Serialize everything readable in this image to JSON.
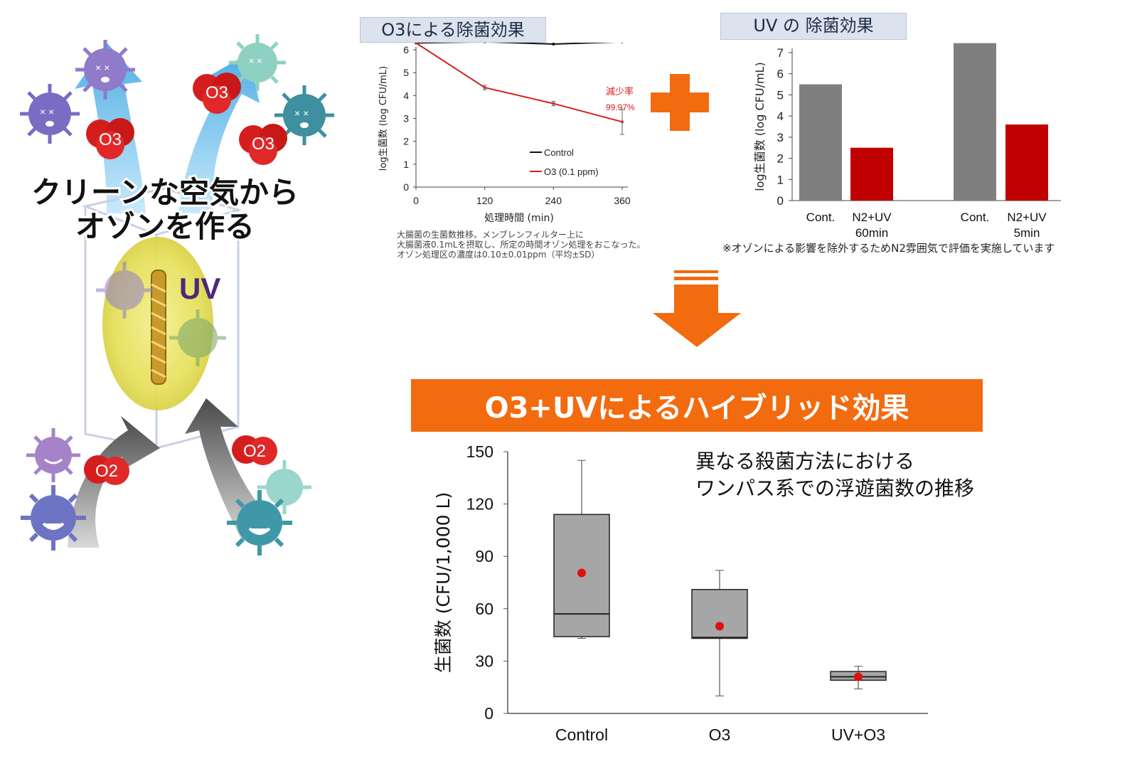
{
  "illustration": {
    "headline_line1": "クリーンな空気から",
    "headline_line2": "オゾンを作る",
    "uv_label": "UV",
    "molecule_o3": "O3",
    "molecule_o2": "O2",
    "colors": {
      "virus_purple": "#8b7cc8",
      "virus_teal": "#5aa8b0",
      "molecule_red": "#d62020",
      "arrow_blue": "#4fb3e6",
      "lamp_glow": "#e6e04a"
    }
  },
  "o3_panel": {
    "title": "O3による除菌効果",
    "caption_lines": [
      "大腸菌の生菌数推移。メンブレンフィルター上に",
      "大腸菌液0.1mLを摂取し、所定の時間オゾン処理をおこなった。",
      "オゾン処理区の濃度は0.10±0.01ppm（平均±SD）"
    ]
  },
  "uv_panel": {
    "title": "UV の 除菌効果",
    "note": "※オゾンによる影響を除外するためN2雰囲気で評価を実施しています"
  },
  "hybrid_banner": {
    "text": "O3+UVによるハイブリッド効果",
    "color": "#f26b0f"
  },
  "boxplot_note": {
    "line1": "異なる殺菌方法における",
    "line2": "ワンパス系での浮遊菌数の推移"
  },
  "chart_data": [
    {
      "type": "line",
      "xlabel": "処理時間 (min)",
      "ylabel": "log生菌数 (log CFU/mL)",
      "x": [
        0,
        120,
        240,
        360
      ],
      "xticks": [
        "0",
        "120",
        "240",
        "360"
      ],
      "ylim": [
        0,
        6
      ],
      "yticks": [
        "0",
        "1",
        "2",
        "3",
        "4",
        "5",
        "6"
      ],
      "series": [
        {
          "name": "Control",
          "color": "#111111",
          "values": [
            6.3,
            6.35,
            6.25,
            6.35
          ]
        },
        {
          "name": "O3 (0.1 ppm)",
          "color": "#d62020",
          "values": [
            6.3,
            4.35,
            3.65,
            2.85
          ],
          "error": [
            0,
            0.1,
            0.1,
            0.55
          ]
        }
      ],
      "annotation": {
        "label": "減少率",
        "value": "99.97%"
      },
      "legend": "bottom-right",
      "grid": false
    },
    {
      "type": "bar",
      "ylabel": "log生菌数 (log CFU/mL)",
      "ylim": [
        0,
        7
      ],
      "yticks": [
        "0",
        "1",
        "2",
        "3",
        "4",
        "5",
        "6",
        "7"
      ],
      "categories": [
        {
          "label1": "Cont.",
          "label2": "",
          "value": 5.5,
          "color": "#7f7f7f"
        },
        {
          "label1": "N2+UV",
          "label2": "60min",
          "value": 2.5,
          "color": "#c00000"
        },
        {
          "label1": "Cont.",
          "label2": "",
          "value": 7.45,
          "color": "#7f7f7f"
        },
        {
          "label1": "N2+UV",
          "label2": "5min",
          "value": 3.6,
          "color": "#c00000"
        }
      ],
      "grid": false
    },
    {
      "type": "box",
      "ylabel": "生菌数 (CFU/1,000 L)",
      "ylim": [
        0,
        150
      ],
      "yticks": [
        "0",
        "30",
        "60",
        "90",
        "120",
        "150"
      ],
      "groups": [
        {
          "label": "Control",
          "min": 43,
          "q1": 44,
          "median": 57,
          "q3": 114,
          "max": 145,
          "mean": 80.5
        },
        {
          "label": "O3",
          "min": 10,
          "q1": 43,
          "median": 43.5,
          "q3": 71,
          "max": 82,
          "mean": 50
        },
        {
          "label": "UV+O3",
          "min": 14,
          "q1": 19,
          "median": 21,
          "q3": 24,
          "max": 27,
          "mean": 21
        }
      ],
      "box_color": "#a6a6a6",
      "mean_color": "#e01010"
    }
  ]
}
